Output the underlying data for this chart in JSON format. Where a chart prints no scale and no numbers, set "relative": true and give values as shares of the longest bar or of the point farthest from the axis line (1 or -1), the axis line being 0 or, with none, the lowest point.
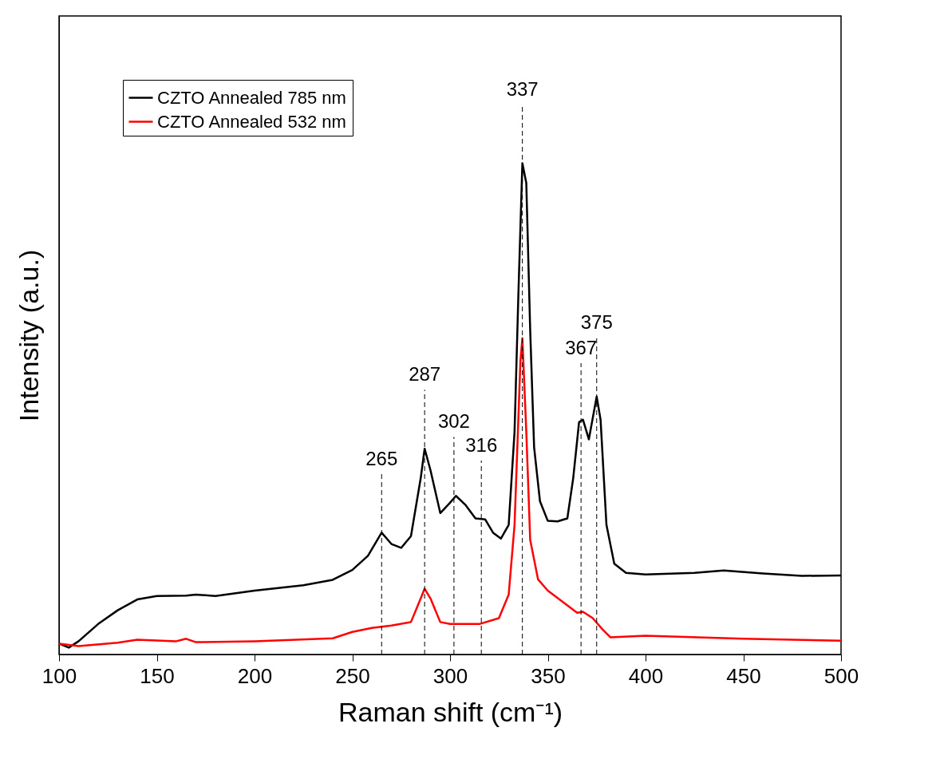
{
  "chart_data": {
    "type": "line",
    "relative": true,
    "xlabel": "Raman shift (cm⁻¹)",
    "ylabel": "Intensity (a.u.)",
    "xlim": [
      100,
      500
    ],
    "xticks": [
      100,
      150,
      200,
      250,
      300,
      350,
      400,
      450,
      500
    ],
    "legend": "top left",
    "line_style": "solid",
    "series": [
      {
        "name": "CZTO Annealed 785 nm",
        "color": "#000000",
        "x": [
          100,
          105,
          110,
          120,
          130,
          140,
          150,
          165,
          170,
          180,
          200,
          225,
          240,
          250,
          258,
          265,
          270,
          275,
          280,
          285,
          287,
          290,
          295,
          300,
          303,
          308,
          313,
          318,
          322,
          326,
          330,
          333,
          335,
          337,
          339,
          341,
          343,
          346,
          350,
          355,
          360,
          363,
          366,
          368,
          371,
          375,
          377,
          380,
          384,
          390,
          400,
          425,
          440,
          460,
          480,
          500
        ],
        "values": [
          0.022,
          0.014,
          0.027,
          0.062,
          0.09,
          0.112,
          0.119,
          0.12,
          0.122,
          0.119,
          0.13,
          0.141,
          0.152,
          0.172,
          0.201,
          0.248,
          0.225,
          0.217,
          0.241,
          0.359,
          0.419,
          0.375,
          0.288,
          0.309,
          0.323,
          0.304,
          0.277,
          0.275,
          0.248,
          0.236,
          0.264,
          0.454,
          0.739,
          1.0,
          0.96,
          0.66,
          0.422,
          0.312,
          0.272,
          0.271,
          0.277,
          0.359,
          0.473,
          0.478,
          0.438,
          0.525,
          0.478,
          0.264,
          0.185,
          0.166,
          0.163,
          0.166,
          0.171,
          0.165,
          0.16,
          0.161
        ]
      },
      {
        "name": "CZTO Annealed 532 nm",
        "color": "#ff0000",
        "x": [
          100,
          110,
          130,
          140,
          160,
          165,
          170,
          200,
          240,
          250,
          260,
          270,
          280,
          285,
          287,
          290,
          295,
          300,
          315,
          325,
          330,
          333,
          336,
          337,
          339,
          341,
          345,
          350,
          358,
          365,
          368,
          373,
          378,
          382,
          400,
          450,
          500
        ],
        "values": [
          0.022,
          0.017,
          0.024,
          0.03,
          0.027,
          0.032,
          0.025,
          0.027,
          0.033,
          0.046,
          0.054,
          0.059,
          0.066,
          0.114,
          0.134,
          0.114,
          0.066,
          0.062,
          0.062,
          0.074,
          0.122,
          0.264,
          0.597,
          0.644,
          0.454,
          0.233,
          0.153,
          0.13,
          0.106,
          0.085,
          0.087,
          0.074,
          0.051,
          0.035,
          0.038,
          0.032,
          0.028
        ]
      }
    ],
    "ref_lines": [
      {
        "axis": "x",
        "value": 265,
        "label": "265",
        "color": "#000000",
        "line_style": "dashed"
      },
      {
        "axis": "x",
        "value": 287,
        "label": "287",
        "color": "#000000",
        "line_style": "dashed"
      },
      {
        "axis": "x",
        "value": 302,
        "label": "302",
        "color": "#000000",
        "line_style": "dashed"
      },
      {
        "axis": "x",
        "value": 316,
        "label": "316",
        "color": "#000000",
        "line_style": "dashed"
      },
      {
        "axis": "x",
        "value": 337,
        "label": "337",
        "color": "#000000",
        "line_style": "dashed"
      },
      {
        "axis": "x",
        "value": 367,
        "label": "367",
        "color": "#000000",
        "line_style": "dashed"
      },
      {
        "axis": "x",
        "value": 375,
        "label": "375",
        "color": "#000000",
        "line_style": "dashed"
      }
    ]
  }
}
